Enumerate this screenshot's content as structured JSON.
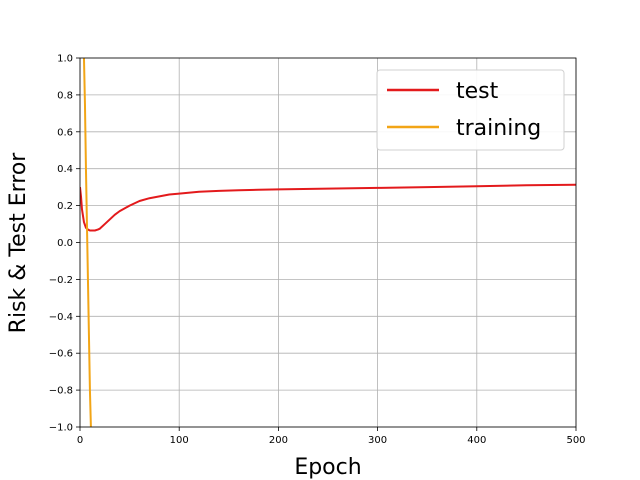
{
  "chart_data": {
    "type": "line",
    "title": "",
    "xlabel": "Epoch",
    "ylabel": "Risk & Test Error",
    "xlim": [
      0,
      500
    ],
    "ylim": [
      -1.0,
      1.0
    ],
    "xticks": [
      "0",
      "100",
      "200",
      "300",
      "400",
      "500"
    ],
    "yticks": [
      "−1.0",
      "−0.8",
      "−0.6",
      "−0.4",
      "−0.2",
      "0.0",
      "0.2",
      "0.4",
      "0.6",
      "0.8",
      "1.0"
    ],
    "grid": true,
    "legend_position": "top-right",
    "series": [
      {
        "name": "test",
        "color": "#e31a1c",
        "x": [
          0,
          1,
          2,
          4,
          6,
          8,
          10,
          12,
          15,
          18,
          20,
          25,
          30,
          35,
          40,
          45,
          50,
          60,
          70,
          80,
          90,
          100,
          120,
          140,
          160,
          180,
          200,
          250,
          300,
          350,
          400,
          450,
          500
        ],
        "y": [
          0.3,
          0.25,
          0.18,
          0.11,
          0.08,
          0.07,
          0.065,
          0.065,
          0.065,
          0.07,
          0.075,
          0.1,
          0.125,
          0.15,
          0.17,
          0.185,
          0.2,
          0.225,
          0.24,
          0.25,
          0.26,
          0.265,
          0.275,
          0.28,
          0.283,
          0.286,
          0.288,
          0.292,
          0.296,
          0.3,
          0.305,
          0.31,
          0.313
        ]
      },
      {
        "name": "training",
        "color": "#f2a516",
        "x": [
          4,
          5,
          6,
          7,
          8,
          9,
          10,
          11
        ],
        "y": [
          1.0,
          0.75,
          0.4,
          0.1,
          -0.2,
          -0.5,
          -0.8,
          -1.0
        ]
      }
    ]
  }
}
